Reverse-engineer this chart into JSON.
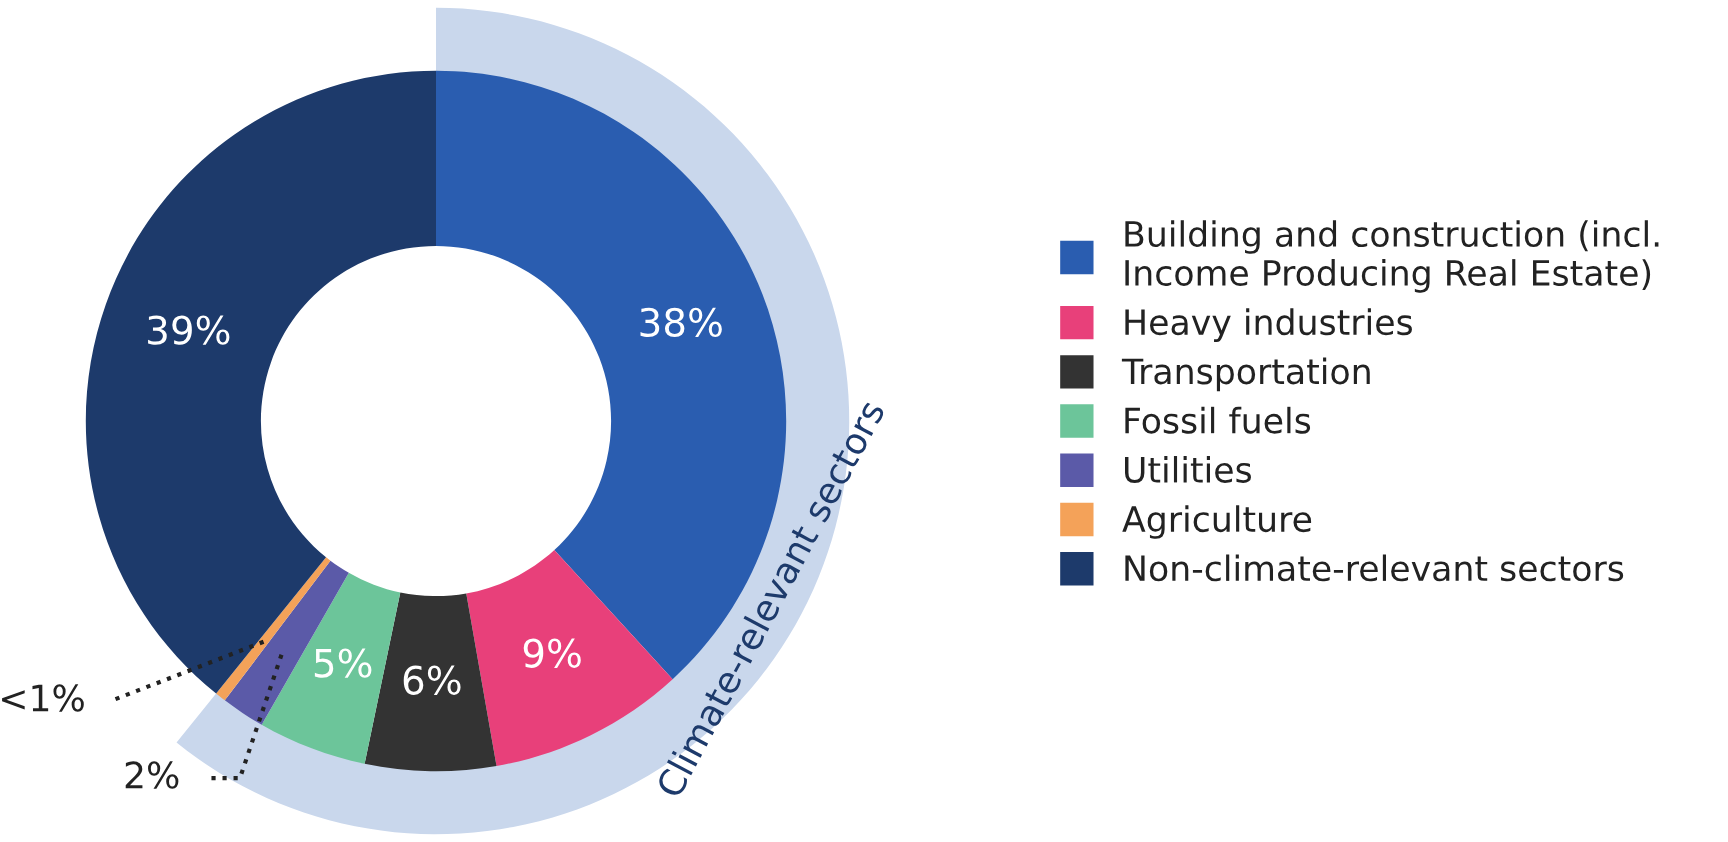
{
  "chart_data": {
    "type": "donut",
    "categories": [
      "Building and construction (incl.\nIncome Producing Real Estate)",
      "Heavy industries",
      "Transportation",
      "Fossil fuels",
      "Utilities",
      "Agriculture",
      "Non-climate-relevant sectors"
    ],
    "values": [
      38,
      9,
      6,
      5,
      2,
      0.5,
      39
    ],
    "value_labels": [
      "38%",
      "9%",
      "6%",
      "5%",
      "2%",
      "<1%",
      "39%"
    ],
    "colors": [
      "#2a5db0",
      "#e8407a",
      "#333333",
      "#6cc59a",
      "#5b5aa8",
      "#f4a259",
      "#1d3a6b"
    ],
    "annotations": [
      "Climate-relevant sectors"
    ],
    "legend": "right"
  }
}
